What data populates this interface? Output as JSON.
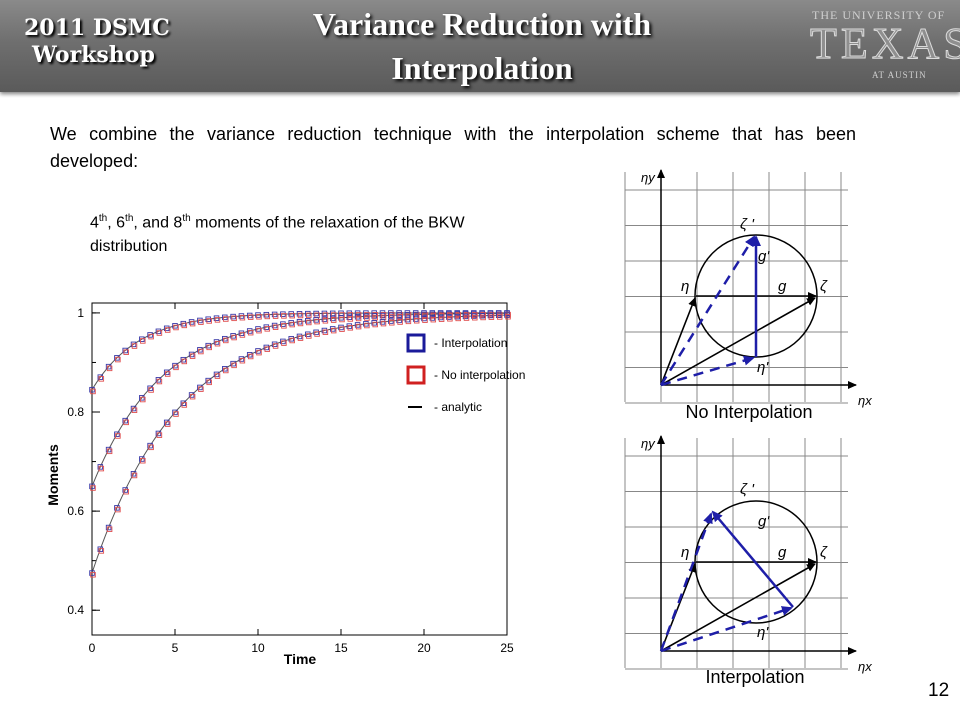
{
  "header": {
    "workshop_line1": "2011 DSMC",
    "workshop_line2": "Workshop",
    "title_line1": "Variance Reduction with",
    "title_line2": "Interpolation",
    "logo_top": "THE UNIVERSITY OF",
    "logo_main": "TEXAS",
    "logo_bottom": "AT AUSTIN"
  },
  "intro_text": "We combine the variance reduction technique with the interpolation scheme that has been developed:",
  "caption": {
    "n1": "4",
    "n2": "6",
    "n3": "8",
    "suffix": "th",
    "sep1": ", ",
    "sep2": ", and ",
    "text_end": " moments of the relaxation of the BKW distribution"
  },
  "legend": {
    "interp": "- Interpolation",
    "nointerp": "- No interpolation",
    "analytic": "- analytic"
  },
  "chart_data": {
    "type": "line",
    "xlabel": "Time",
    "ylabel": "Moments",
    "xlim": [
      0,
      25
    ],
    "ylim": [
      0.35,
      1.02
    ],
    "xticks": [
      0,
      5,
      10,
      15,
      20,
      25
    ],
    "yticks": [
      0.4,
      0.6,
      0.8,
      1
    ],
    "series": [
      {
        "name": "4th moment",
        "y0": 0.845,
        "tau": 2.8
      },
      {
        "name": "6th moment",
        "y0": 0.65,
        "tau": 4.2
      },
      {
        "name": "8th moment",
        "y0": 0.475,
        "tau": 5.2
      }
    ],
    "marker_step": 0.5,
    "legend_position": "right",
    "colors": {
      "interp": "#3a3aa8",
      "nointerp": "#e05050",
      "analytic": "#555555"
    }
  },
  "diagrams": [
    {
      "caption": "No Interpolation",
      "labels": {
        "eta_y": "ηy",
        "eta_x": "ηx",
        "eta": "η",
        "zeta": "ζ",
        "g": "g",
        "zeta_p": "ζ '",
        "g_p": "g'",
        "eta_p": "η'"
      }
    },
    {
      "caption": "Interpolation",
      "labels": {
        "eta_y": "ηy",
        "eta_x": "ηx",
        "eta": "η",
        "zeta": "ζ",
        "g": "g",
        "zeta_p": "ζ '",
        "g_p": "g'",
        "eta_p": "η'"
      }
    }
  ],
  "page_number": "12",
  "colors": {
    "vector_blue": "#1e1ea8",
    "header_gray": "#6f6f6f"
  }
}
